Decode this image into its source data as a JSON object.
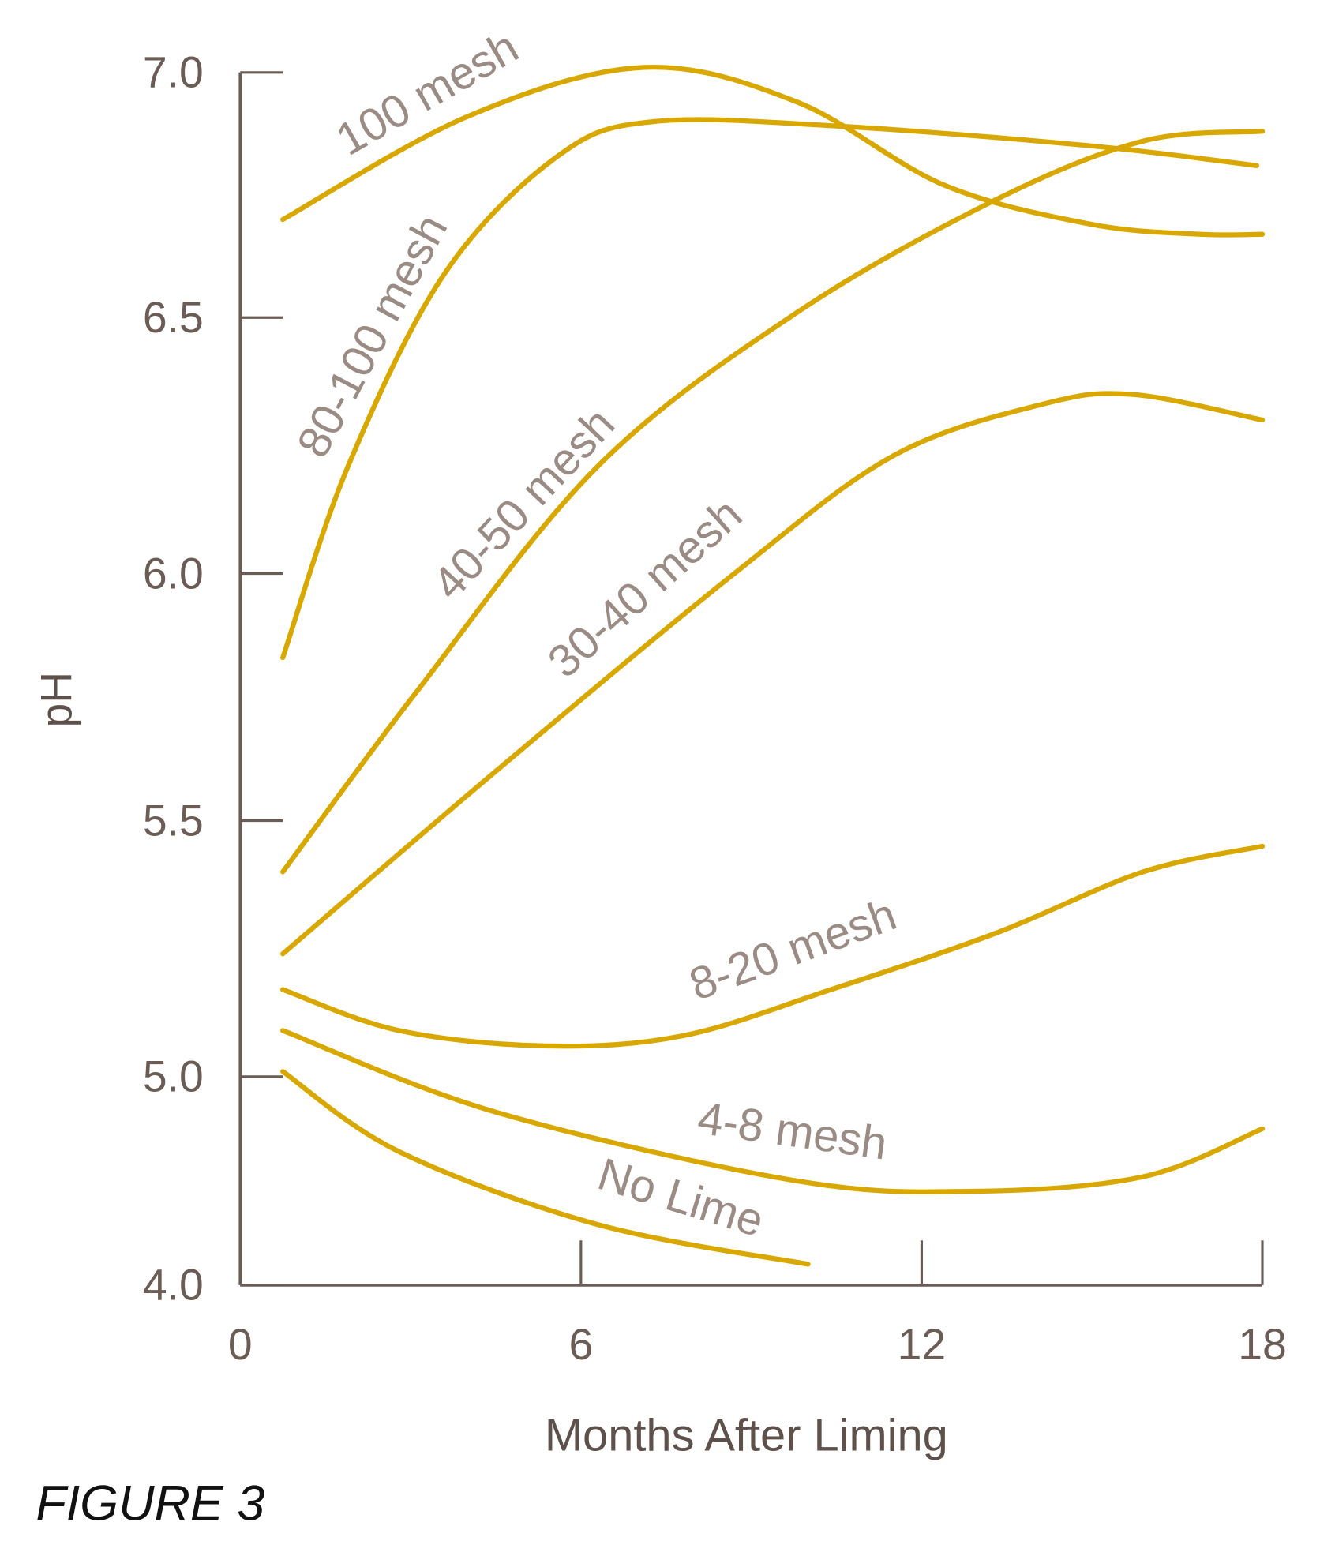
{
  "figure_label": "FIGURE 3",
  "chart_data": {
    "type": "line",
    "title": "",
    "xlabel": "Months After Liming",
    "ylabel": "pH",
    "xlim": [
      0,
      18
    ],
    "ylim": [
      4.0,
      7.0
    ],
    "x_ticks": [
      "0",
      "6",
      "12",
      "18"
    ],
    "y_ticks": [
      "7.0",
      "6.5",
      "6.0",
      "5.5",
      "5.0",
      "4.0"
    ],
    "y_axis_note": "axis break between 5.0 and 4.0",
    "grid": false,
    "legend": "none (series labelled inline)",
    "line_color": "#d9a800",
    "label_color": "#9a8c84",
    "axis_color": "#6b5d55",
    "series": [
      {
        "name": "100 mesh",
        "x": [
          0.75,
          4.0,
          7.1,
          9.8,
          12.4,
          15.0,
          16.9,
          18.0
        ],
        "y": [
          6.7,
          6.91,
          7.01,
          6.94,
          6.77,
          6.69,
          6.67,
          6.67
        ]
      },
      {
        "name": "80-100 mesh",
        "x": [
          0.75,
          1.9,
          3.6,
          5.6,
          7.3,
          10.6,
          15.0,
          17.9
        ],
        "y": [
          5.83,
          6.21,
          6.59,
          6.83,
          6.9,
          6.89,
          6.85,
          6.81
        ]
      },
      {
        "name": "40-50 mesh",
        "x": [
          0.75,
          3.1,
          6.3,
          9.8,
          13.3,
          15.9,
          18.0
        ],
        "y": [
          5.4,
          5.76,
          6.21,
          6.51,
          6.74,
          6.86,
          6.88
        ]
      },
      {
        "name": "30-40 mesh",
        "x": [
          0.75,
          4.5,
          8.7,
          11.5,
          14.1,
          15.7,
          18.0
        ],
        "y": [
          5.24,
          5.6,
          6.0,
          6.23,
          6.33,
          6.35,
          6.3
        ]
      },
      {
        "name": "8-20 mesh",
        "x": [
          0.75,
          2.8,
          5.4,
          7.8,
          10.4,
          13.3,
          15.9,
          18.0
        ],
        "y": [
          5.17,
          5.09,
          5.06,
          5.08,
          5.17,
          5.28,
          5.4,
          5.45
        ]
      },
      {
        "name": "4-8 mesh",
        "x": [
          0.75,
          4.5,
          9.8,
          12.9,
          15.9,
          18.0
        ],
        "y": [
          5.09,
          4.83,
          4.5,
          4.45,
          4.52,
          4.75
        ]
      },
      {
        "name": "No Lime",
        "x": [
          0.75,
          2.8,
          6.3,
          10.0
        ],
        "y": [
          5.01,
          4.64,
          4.29,
          4.1
        ]
      }
    ]
  }
}
